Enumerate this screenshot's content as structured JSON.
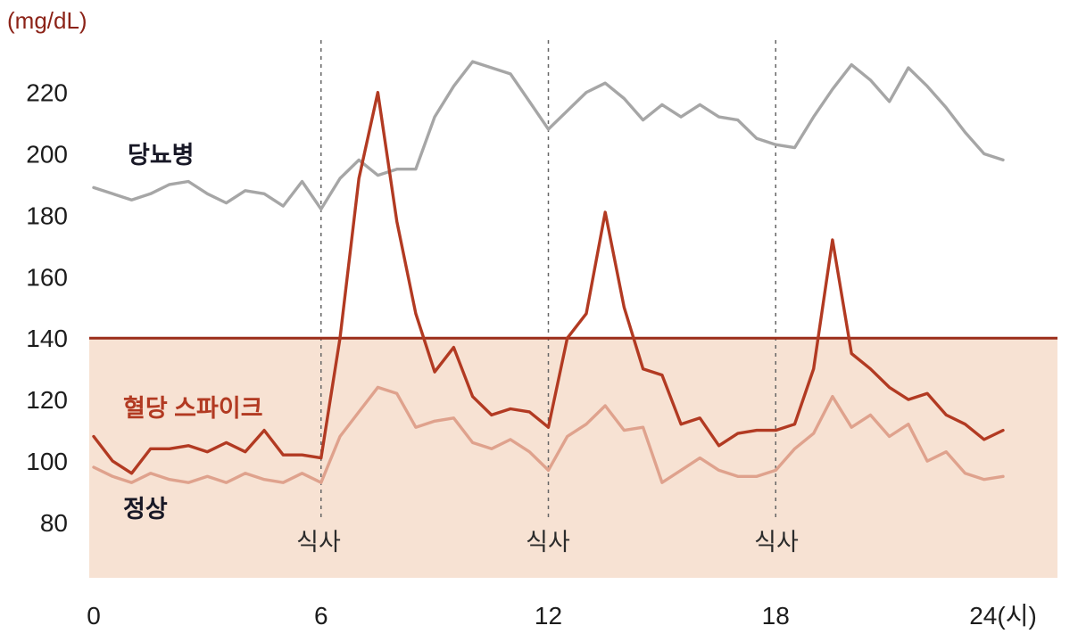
{
  "labels": {
    "unit": "(mg/dL)",
    "diabetes": "당뇨병",
    "spike": "혈당 스파이크",
    "normal": "정상",
    "meal": "식사"
  },
  "chart_data": {
    "type": "line",
    "title": "",
    "unit_label": "(mg/dL)",
    "xlim": [
      0,
      24
    ],
    "x_step": 0.5,
    "x_ticks": [
      0,
      6,
      12,
      18,
      24
    ],
    "x_tick_labels": [
      "0",
      "6",
      "12",
      "18",
      "24(시)"
    ],
    "y_ticks": [
      80,
      100,
      120,
      140,
      160,
      180,
      200,
      220
    ],
    "grid": false,
    "threshold": {
      "value": 140,
      "color": "#9b2d1a"
    },
    "shaded_region": {
      "below": 140,
      "color": "#f7e2d3"
    },
    "meal_lines": {
      "x": [
        6,
        12,
        18
      ],
      "label": "식사",
      "style": "dashed",
      "color": "#666666"
    },
    "series": [
      {
        "key": "diabetes",
        "name": "당뇨병",
        "color": "#a6a6a6",
        "values": [
          189,
          187,
          185,
          187,
          190,
          191,
          187,
          184,
          188,
          187,
          183,
          191,
          182,
          192,
          198,
          193,
          195,
          195,
          212,
          222,
          230,
          228,
          226,
          217,
          208,
          214,
          220,
          223,
          218,
          211,
          216,
          212,
          216,
          212,
          211,
          205,
          203,
          202,
          212,
          221,
          229,
          224,
          217,
          228,
          222,
          215,
          207,
          200,
          198
        ]
      },
      {
        "key": "normal",
        "name": "정상",
        "color": "#dfa28d",
        "values": [
          98,
          95,
          93,
          96,
          94,
          93,
          95,
          93,
          96,
          94,
          93,
          96,
          93,
          108,
          116,
          124,
          122,
          111,
          113,
          114,
          106,
          104,
          107,
          103,
          97,
          108,
          112,
          118,
          110,
          111,
          93,
          97,
          101,
          97,
          95,
          95,
          97,
          104,
          109,
          121,
          111,
          115,
          108,
          112,
          100,
          103,
          96,
          94,
          95
        ]
      },
      {
        "key": "spike",
        "name": "혈당 스파이크",
        "color": "#b23a22",
        "values": [
          108,
          100,
          96,
          104,
          104,
          105,
          103,
          106,
          103,
          110,
          102,
          102,
          101,
          140,
          192,
          220,
          178,
          148,
          129,
          137,
          121,
          115,
          117,
          116,
          111,
          140,
          148,
          181,
          150,
          130,
          128,
          112,
          114,
          105,
          109,
          110,
          110,
          112,
          130,
          172,
          135,
          130,
          124,
          120,
          122,
          115,
          112,
          107,
          110
        ]
      }
    ]
  }
}
